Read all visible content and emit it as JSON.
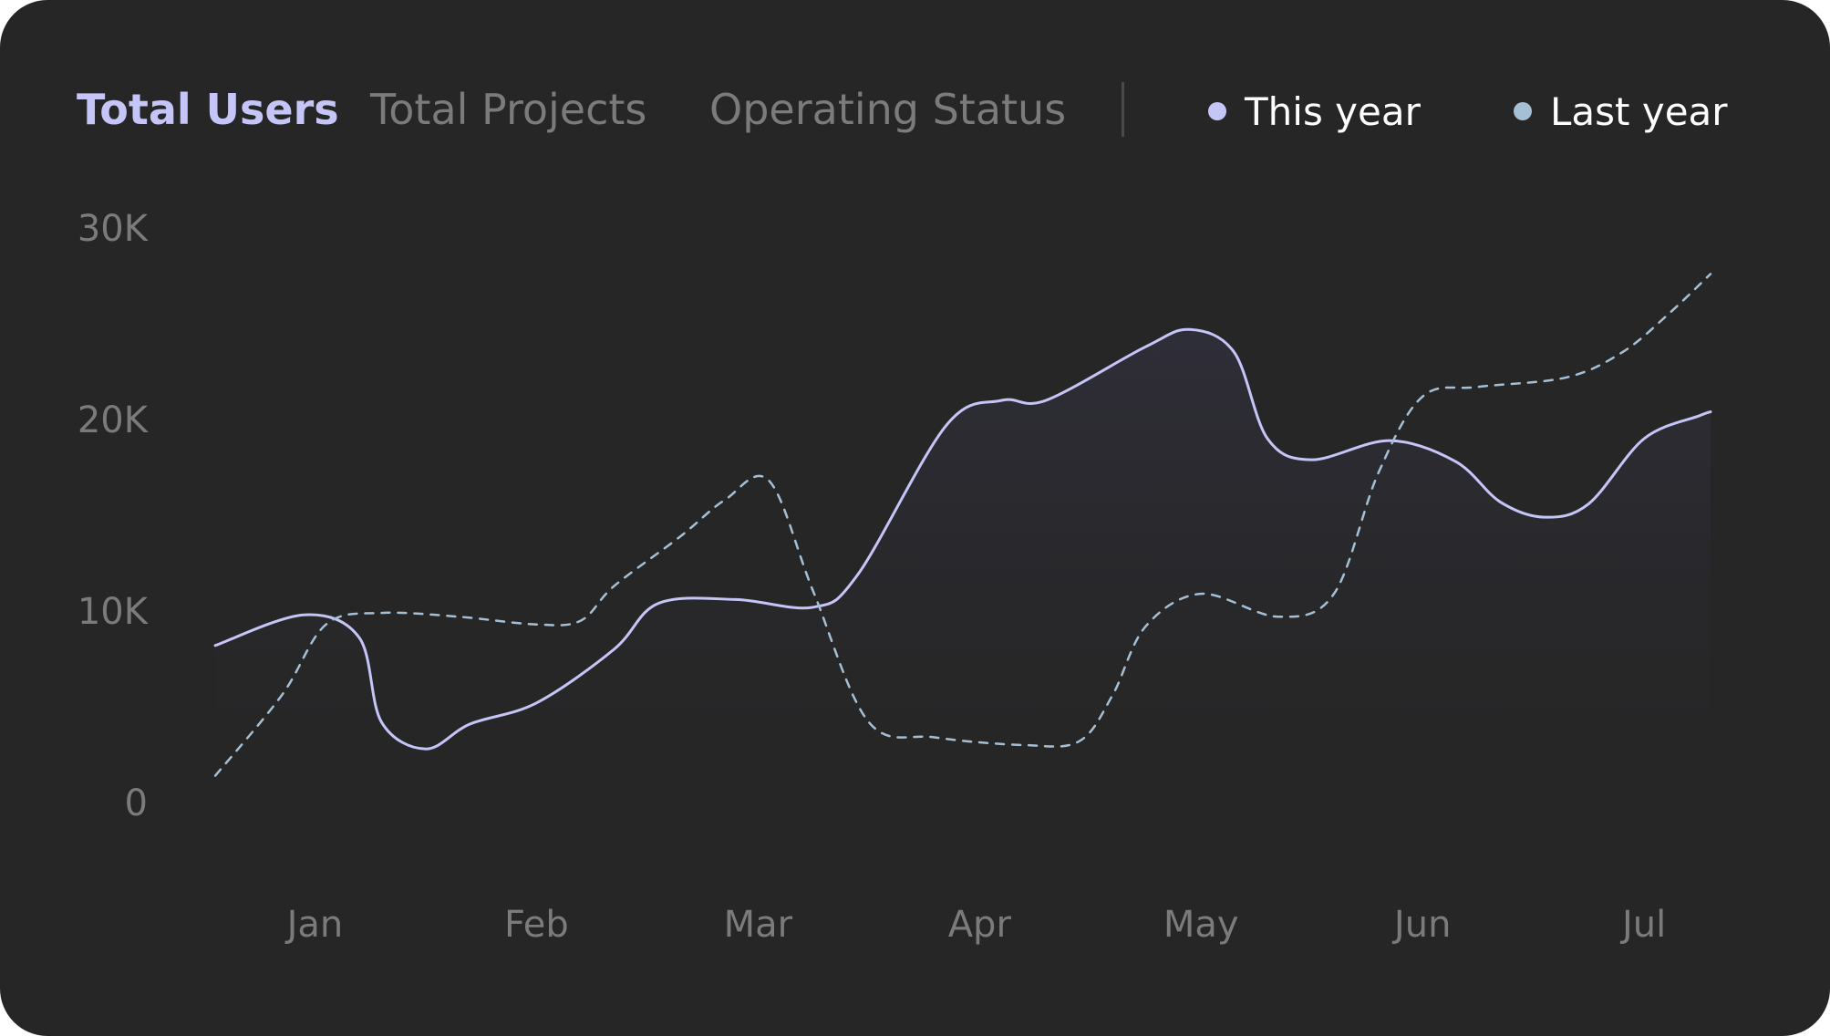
{
  "tabs": [
    {
      "label": "Total Users",
      "active": true
    },
    {
      "label": "Total Projects",
      "active": false
    },
    {
      "label": "Operating Status",
      "active": false
    }
  ],
  "legend": [
    {
      "label": "This year",
      "color": "#c6c5f7"
    },
    {
      "label": "Last year",
      "color": "#a5bfd4"
    }
  ],
  "colors": {
    "background": "#262626",
    "accent": "#c6c5f7",
    "muted_text": "#7b7b7b"
  },
  "chart_data": {
    "type": "line",
    "xlabel": "",
    "ylabel": "",
    "ylim": [
      0,
      30000
    ],
    "y_ticks": [
      {
        "value": 0,
        "label": "0"
      },
      {
        "value": 10000,
        "label": "10K"
      },
      {
        "value": 20000,
        "label": "20K"
      },
      {
        "value": 30000,
        "label": "30K"
      }
    ],
    "x_range": [
      0.5,
      7.3
    ],
    "x_ticks": [
      {
        "value": 1,
        "label": "Jan"
      },
      {
        "value": 2,
        "label": "Feb"
      },
      {
        "value": 3,
        "label": "Mar"
      },
      {
        "value": 4,
        "label": "Apr"
      },
      {
        "value": 5,
        "label": "May"
      },
      {
        "value": 6,
        "label": "Jun"
      },
      {
        "value": 7,
        "label": "Jul"
      }
    ],
    "grid": false,
    "legend_position": "top-right",
    "series": [
      {
        "name": "This year",
        "style": "solid",
        "color": "#c6c5f7",
        "points": [
          [
            0.55,
            8200
          ],
          [
            0.95,
            9800
          ],
          [
            1.2,
            8600
          ],
          [
            1.3,
            4200
          ],
          [
            1.5,
            2800
          ],
          [
            1.7,
            4100
          ],
          [
            2.0,
            5200
          ],
          [
            2.35,
            8000
          ],
          [
            2.55,
            10400
          ],
          [
            2.9,
            10600
          ],
          [
            3.25,
            10200
          ],
          [
            3.45,
            11900
          ],
          [
            3.85,
            19700
          ],
          [
            4.1,
            21000
          ],
          [
            4.3,
            21000
          ],
          [
            4.75,
            23800
          ],
          [
            4.95,
            24700
          ],
          [
            5.15,
            23500
          ],
          [
            5.3,
            19000
          ],
          [
            5.5,
            17900
          ],
          [
            5.85,
            18900
          ],
          [
            6.15,
            17800
          ],
          [
            6.35,
            15700
          ],
          [
            6.55,
            14900
          ],
          [
            6.75,
            15600
          ],
          [
            7.0,
            19000
          ],
          [
            7.25,
            20200
          ],
          [
            7.3,
            20400
          ]
        ]
      },
      {
        "name": "Last year",
        "style": "dashed",
        "color": "#a5bfd4",
        "points": [
          [
            0.55,
            1400
          ],
          [
            0.85,
            5600
          ],
          [
            1.05,
            9300
          ],
          [
            1.3,
            9900
          ],
          [
            1.65,
            9700
          ],
          [
            2.0,
            9300
          ],
          [
            2.2,
            9500
          ],
          [
            2.35,
            11300
          ],
          [
            2.65,
            13900
          ],
          [
            2.85,
            15800
          ],
          [
            3.05,
            16800
          ],
          [
            3.25,
            11000
          ],
          [
            3.5,
            4200
          ],
          [
            3.8,
            3400
          ],
          [
            4.2,
            3000
          ],
          [
            4.45,
            3200
          ],
          [
            4.6,
            5600
          ],
          [
            4.75,
            9200
          ],
          [
            5.0,
            10900
          ],
          [
            5.35,
            9700
          ],
          [
            5.6,
            10900
          ],
          [
            5.8,
            17200
          ],
          [
            6.0,
            21200
          ],
          [
            6.25,
            21700
          ],
          [
            6.65,
            22200
          ],
          [
            6.9,
            23500
          ],
          [
            7.1,
            25400
          ],
          [
            7.3,
            27600
          ]
        ]
      }
    ]
  }
}
